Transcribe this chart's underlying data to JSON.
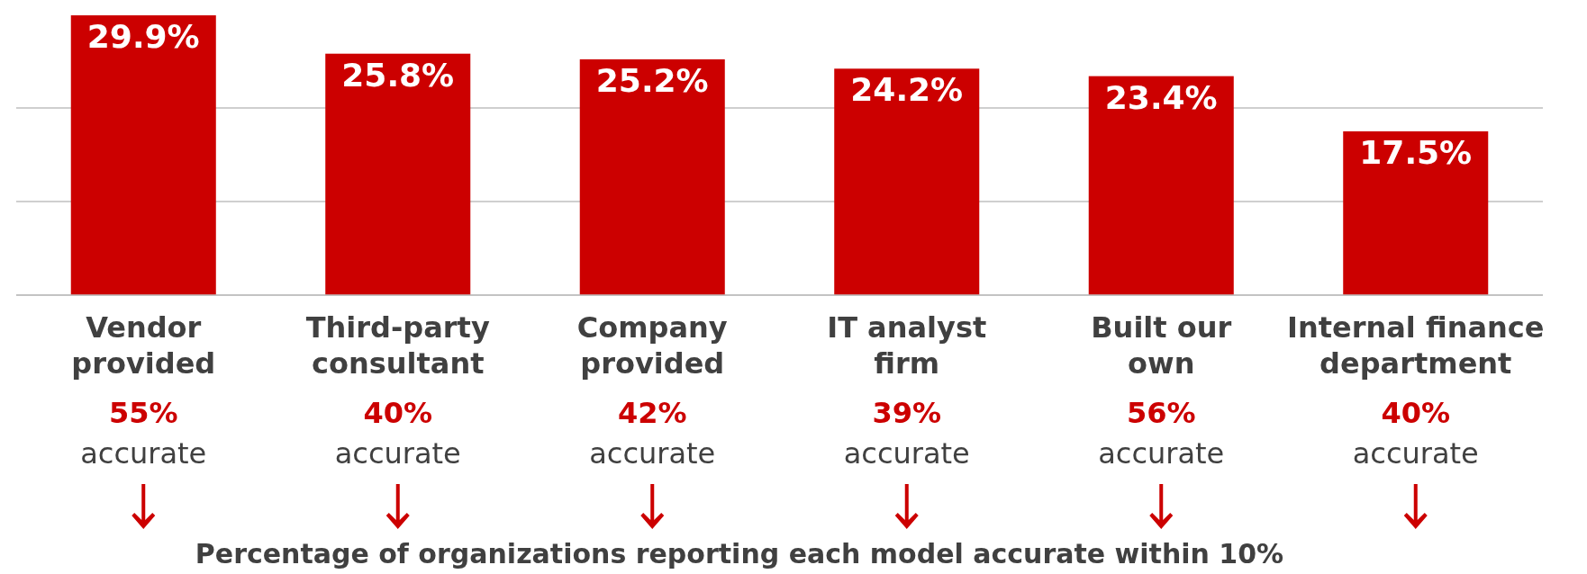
{
  "chart_data": {
    "type": "bar",
    "categories": [
      "Vendor provided",
      "Third-party consultant",
      "Company provided",
      "IT analyst firm",
      "Built our own",
      "Internal finance department"
    ],
    "values": [
      29.9,
      25.8,
      25.2,
      24.2,
      23.4,
      17.5
    ],
    "value_labels": [
      "29.9%",
      "25.8%",
      "25.2%",
      "24.2%",
      "23.4%",
      "17.5%"
    ],
    "color": "#cc0000",
    "ylim": [
      0,
      30
    ],
    "yticks": [
      {
        "value": 0,
        "label": null
      },
      {
        "value": 10,
        "label": null
      },
      {
        "value": 20,
        "label": null
      }
    ],
    "grid": "y",
    "tick_labels": "x",
    "annotations": [
      "55% accurate",
      "40% accurate",
      "42% accurate",
      "39% accurate",
      "56% accurate",
      "40% accurate",
      "Percentage of organizations reporting each model accurate within 10%"
    ]
  }
}
